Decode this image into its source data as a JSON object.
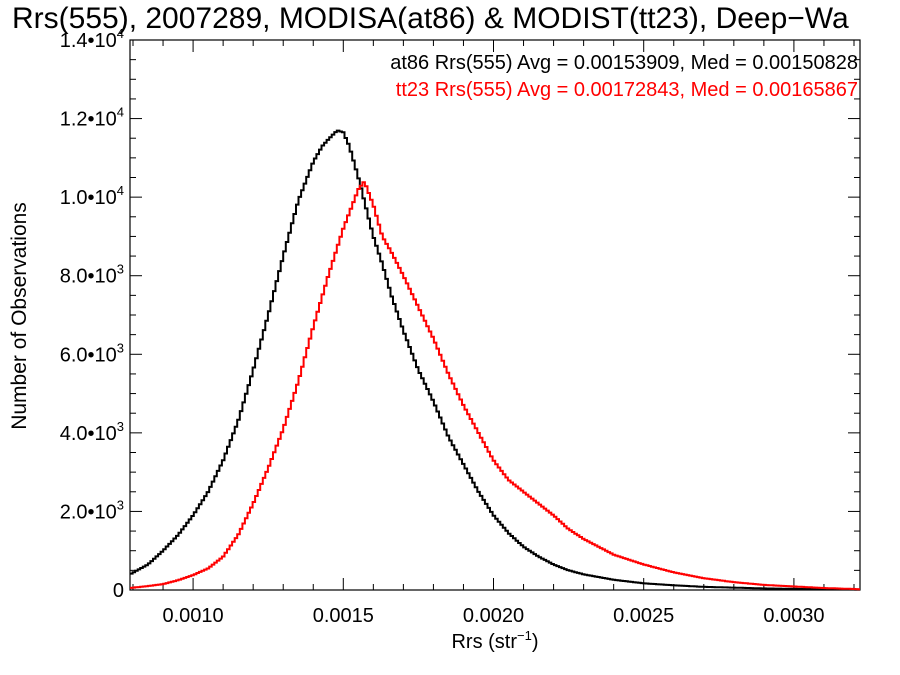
{
  "chart_data": {
    "type": "line",
    "title": "Rrs(555), 2007289, MODISA(at86) & MODIST(tt23), Deep−Wa",
    "xlabel_main": "Rrs (str",
    "xlabel_sup": "−1",
    "xlabel_close": ")",
    "ylabel": "Number of Observations",
    "xlim": [
      0.00079,
      0.00322
    ],
    "ylim": [
      0,
      14000
    ],
    "x_ticks": [
      {
        "value": 0.001,
        "label": "0.0010"
      },
      {
        "value": 0.0015,
        "label": "0.0015"
      },
      {
        "value": 0.002,
        "label": "0.0020"
      },
      {
        "value": 0.0025,
        "label": "0.0025"
      },
      {
        "value": 0.003,
        "label": "0.0030"
      }
    ],
    "y_ticks": [
      {
        "value": 0,
        "label": "0",
        "sup": ""
      },
      {
        "value": 2000,
        "label": "2.0•10",
        "sup": "3"
      },
      {
        "value": 4000,
        "label": "4.0•10",
        "sup": "3"
      },
      {
        "value": 6000,
        "label": "6.0•10",
        "sup": "3"
      },
      {
        "value": 8000,
        "label": "8.0•10",
        "sup": "3"
      },
      {
        "value": 10000,
        "label": "1.0•10",
        "sup": "4"
      },
      {
        "value": 12000,
        "label": "1.2•10",
        "sup": "4"
      },
      {
        "value": 14000,
        "label": "1.4•10",
        "sup": "4"
      }
    ],
    "legend": [
      {
        "text": "at86 Rrs(555) Avg = 0.00153909, Med = 0.00150828",
        "color": "#000000"
      },
      {
        "text": "tt23 Rrs(555) Avg = 0.00172843, Med = 0.00165867",
        "color": "#ff0000"
      }
    ],
    "legend_position": "top-right",
    "series": [
      {
        "color": "#000000",
        "x": [
          0.00079,
          0.00085,
          0.0009,
          0.00095,
          0.001,
          0.00105,
          0.0011,
          0.00115,
          0.0012,
          0.00125,
          0.0013,
          0.00135,
          0.0014,
          0.00143,
          0.00146,
          0.00148,
          0.0015,
          0.00152,
          0.00155,
          0.00158,
          0.0016,
          0.00163,
          0.00166,
          0.0017,
          0.00175,
          0.0018,
          0.00185,
          0.0019,
          0.00195,
          0.002,
          0.00205,
          0.0021,
          0.00215,
          0.0022,
          0.00225,
          0.0023,
          0.0024,
          0.0025,
          0.0026,
          0.0027,
          0.0028,
          0.0029,
          0.003,
          0.0031,
          0.00322
        ],
        "y": [
          400,
          650,
          1000,
          1400,
          1900,
          2500,
          3300,
          4300,
          5600,
          7000,
          8500,
          9900,
          10900,
          11300,
          11550,
          11700,
          11650,
          11300,
          10500,
          9600,
          9000,
          8300,
          7500,
          6600,
          5600,
          4800,
          3900,
          3200,
          2500,
          1900,
          1450,
          1100,
          850,
          650,
          500,
          400,
          260,
          170,
          120,
          80,
          60,
          40,
          30,
          20,
          10
        ]
      },
      {
        "color": "#ff0000",
        "x": [
          0.00079,
          0.00085,
          0.0009,
          0.00095,
          0.001,
          0.00105,
          0.0011,
          0.00115,
          0.0012,
          0.00125,
          0.0013,
          0.00135,
          0.0014,
          0.00145,
          0.0015,
          0.00153,
          0.00155,
          0.00157,
          0.0016,
          0.00163,
          0.00166,
          0.0017,
          0.00175,
          0.0018,
          0.00185,
          0.0019,
          0.00195,
          0.002,
          0.00205,
          0.0021,
          0.00215,
          0.0022,
          0.00225,
          0.0023,
          0.00235,
          0.0024,
          0.0025,
          0.0026,
          0.0027,
          0.0028,
          0.0029,
          0.003,
          0.0031,
          0.00322
        ],
        "y": [
          50,
          100,
          150,
          250,
          380,
          550,
          850,
          1400,
          2200,
          3100,
          4100,
          5300,
          6700,
          8000,
          9200,
          9800,
          10200,
          10400,
          9800,
          9000,
          8600,
          8000,
          7200,
          6400,
          5500,
          4700,
          4000,
          3300,
          2800,
          2500,
          2200,
          1900,
          1550,
          1300,
          1100,
          900,
          650,
          450,
          300,
          200,
          130,
          90,
          50,
          20
        ]
      }
    ]
  }
}
